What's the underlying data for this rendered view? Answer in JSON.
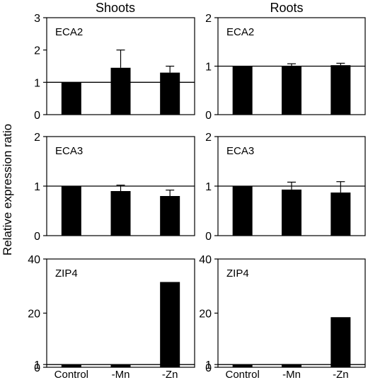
{
  "figure": {
    "ylabel": "Relative expression ratio",
    "columns": [
      "Shoots",
      "Roots"
    ]
  },
  "chart_data": [
    {
      "type": "bar",
      "title": "ECA2",
      "column": "Shoots",
      "categories": [
        "Control",
        "-Mn",
        "-Zn"
      ],
      "values": [
        1.0,
        1.45,
        1.3
      ],
      "error": [
        0.0,
        0.55,
        0.2
      ],
      "ylim": [
        0,
        3
      ],
      "yticks": [
        0,
        1,
        2,
        3
      ],
      "reference_line": 1,
      "show_categories": false
    },
    {
      "type": "bar",
      "title": "ECA2",
      "column": "Roots",
      "categories": [
        "Control",
        "-Mn",
        "-Zn"
      ],
      "values": [
        1.0,
        1.0,
        1.02
      ],
      "error": [
        0.0,
        0.05,
        0.04
      ],
      "ylim": [
        0,
        2
      ],
      "yticks": [
        0,
        1,
        2
      ],
      "reference_line": 1,
      "show_categories": false
    },
    {
      "type": "bar",
      "title": "ECA3",
      "column": "Shoots",
      "categories": [
        "Control",
        "-Mn",
        "-Zn"
      ],
      "values": [
        1.0,
        0.9,
        0.8
      ],
      "error": [
        0.0,
        0.12,
        0.12
      ],
      "ylim": [
        0,
        2
      ],
      "yticks": [
        0,
        1,
        2
      ],
      "reference_line": 1,
      "show_categories": false
    },
    {
      "type": "bar",
      "title": "ECA3",
      "column": "Roots",
      "categories": [
        "Control",
        "-Mn",
        "-Zn"
      ],
      "values": [
        1.0,
        0.93,
        0.87
      ],
      "error": [
        0.0,
        0.15,
        0.22
      ],
      "ylim": [
        0,
        2
      ],
      "yticks": [
        0,
        1,
        2
      ],
      "reference_line": 1,
      "show_categories": false
    },
    {
      "type": "bar",
      "title": "ZIP4",
      "column": "Shoots",
      "categories": [
        "Control",
        "-Mn",
        "-Zn"
      ],
      "values": [
        1.0,
        1.0,
        31.5
      ],
      "error": [
        0.0,
        0.0,
        0.0
      ],
      "ylim": [
        0,
        40
      ],
      "yticks": [
        0,
        1,
        20,
        40
      ],
      "reference_line": 1,
      "show_categories": true
    },
    {
      "type": "bar",
      "title": "ZIP4",
      "column": "Roots",
      "categories": [
        "Control",
        "-Mn",
        "-Zn"
      ],
      "values": [
        1.0,
        1.2,
        18.5
      ],
      "error": [
        0.0,
        0.0,
        0.0
      ],
      "ylim": [
        0,
        40
      ],
      "yticks": [
        0,
        1,
        20,
        40
      ],
      "reference_line": 1,
      "show_categories": true
    }
  ]
}
